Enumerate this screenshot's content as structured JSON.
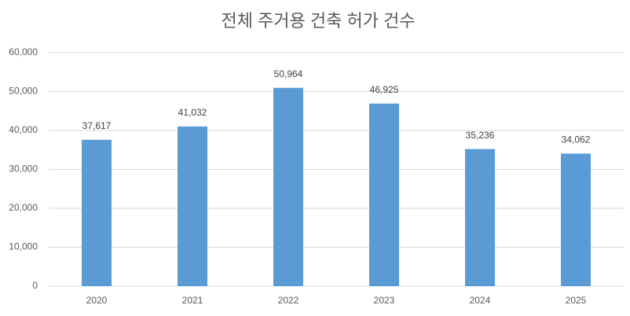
{
  "chart_data": {
    "type": "bar",
    "title": "전체 주거용 건축 허가 건수",
    "categories": [
      "2020",
      "2021",
      "2022",
      "2023",
      "2024",
      "2025"
    ],
    "values": [
      37617,
      41032,
      50964,
      46925,
      35236,
      34062
    ],
    "value_labels": [
      "37,617",
      "41,032",
      "50,964",
      "46,925",
      "35,236",
      "34,062"
    ],
    "color": "#5b9bd5",
    "ylim": [
      0,
      60000
    ],
    "yticks": [
      0,
      {
        "value": 10000,
        "label": "10,000"
      },
      {
        "value": 20000,
        "label": "20,000"
      },
      {
        "value": 30000,
        "label": "30,000"
      },
      {
        "value": 40000,
        "label": "40,000"
      },
      {
        "value": 50000,
        "label": "50,000"
      },
      {
        "value": 60000,
        "label": "60,000"
      }
    ],
    "grid": true
  }
}
